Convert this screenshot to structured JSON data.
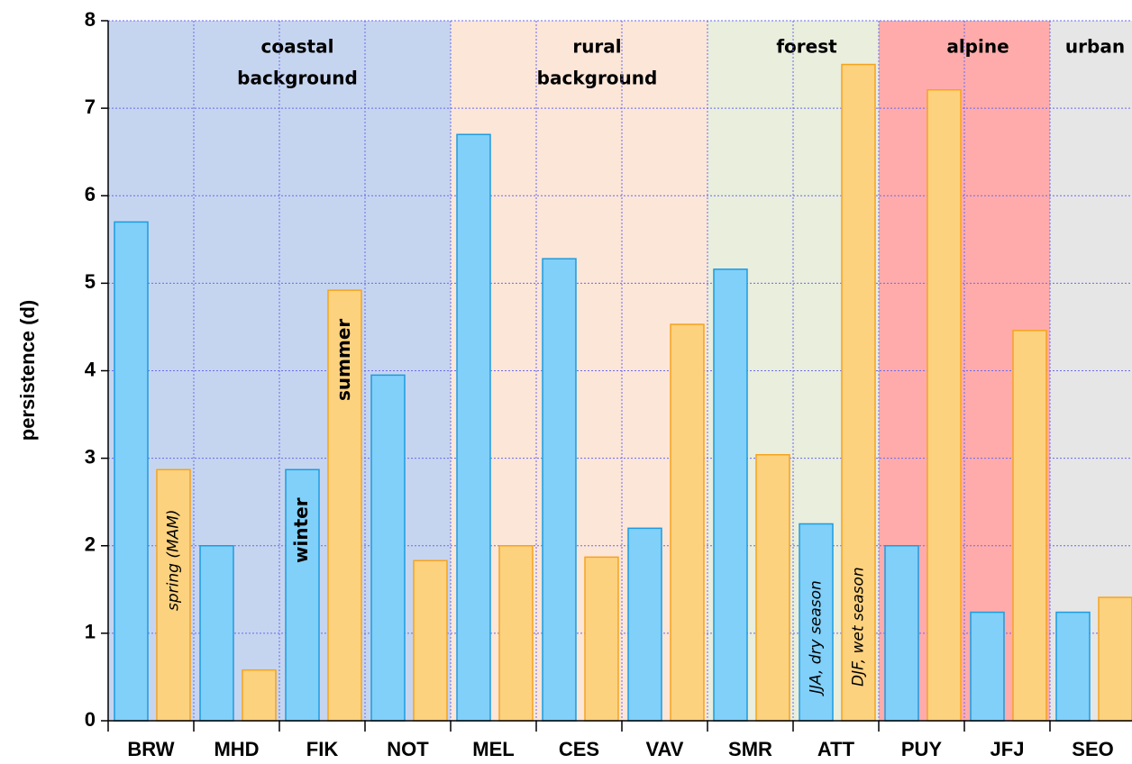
{
  "chart_data": {
    "type": "bar",
    "ylabel": "persistence (d)",
    "categories": [
      "BRW",
      "MHD",
      "FIK",
      "NOT",
      "MEL",
      "CES",
      "VAV",
      "SMR",
      "ATT",
      "PUY",
      "JFJ",
      "SEO"
    ],
    "series": [
      {
        "name": "winter",
        "color": "#80d0fa",
        "edgecolor": "#1e9be0",
        "name_at": "FIK",
        "values": [
          5.7,
          2.0,
          2.87,
          3.95,
          6.7,
          5.28,
          2.2,
          5.16,
          2.25,
          2.0,
          1.24,
          1.24
        ]
      },
      {
        "name": "summer",
        "color": "#fdd27f",
        "edgecolor": "#f5a31f",
        "name_at": "FIK",
        "values": [
          2.87,
          0.58,
          4.92,
          1.83,
          2.0,
          1.87,
          4.53,
          3.04,
          7.5,
          7.21,
          4.46,
          1.41
        ]
      }
    ],
    "regions": [
      {
        "lines": [
          "coastal",
          "background"
        ],
        "from": "BRW",
        "to": "NOT",
        "color": "#c6d5ef"
      },
      {
        "lines": [
          "rural",
          "background"
        ],
        "from": "MEL",
        "to": "VAV",
        "color": "#fce6d8"
      },
      {
        "lines": [
          "forest"
        ],
        "from": "SMR",
        "to": "ATT",
        "color": "#e9eedd"
      },
      {
        "lines": [
          "alpine"
        ],
        "from": "PUY",
        "to": "JFJ",
        "color": "#ffabab"
      },
      {
        "lines": [
          "urban"
        ],
        "from": "SEO",
        "to": "SEO",
        "color": "#e6e6e6"
      }
    ],
    "annotations": [
      {
        "text": "spring (MAM)",
        "series": 1,
        "category": "BRW"
      },
      {
        "text": "JJA, dry season",
        "series": 0,
        "category": "ATT"
      },
      {
        "text": "DJF, wet season",
        "series": 1,
        "category": "ATT"
      }
    ],
    "ylim": [
      0,
      8
    ],
    "yticks": [
      0,
      1,
      2,
      3,
      4,
      5,
      6,
      7,
      8
    ],
    "grid": true
  }
}
